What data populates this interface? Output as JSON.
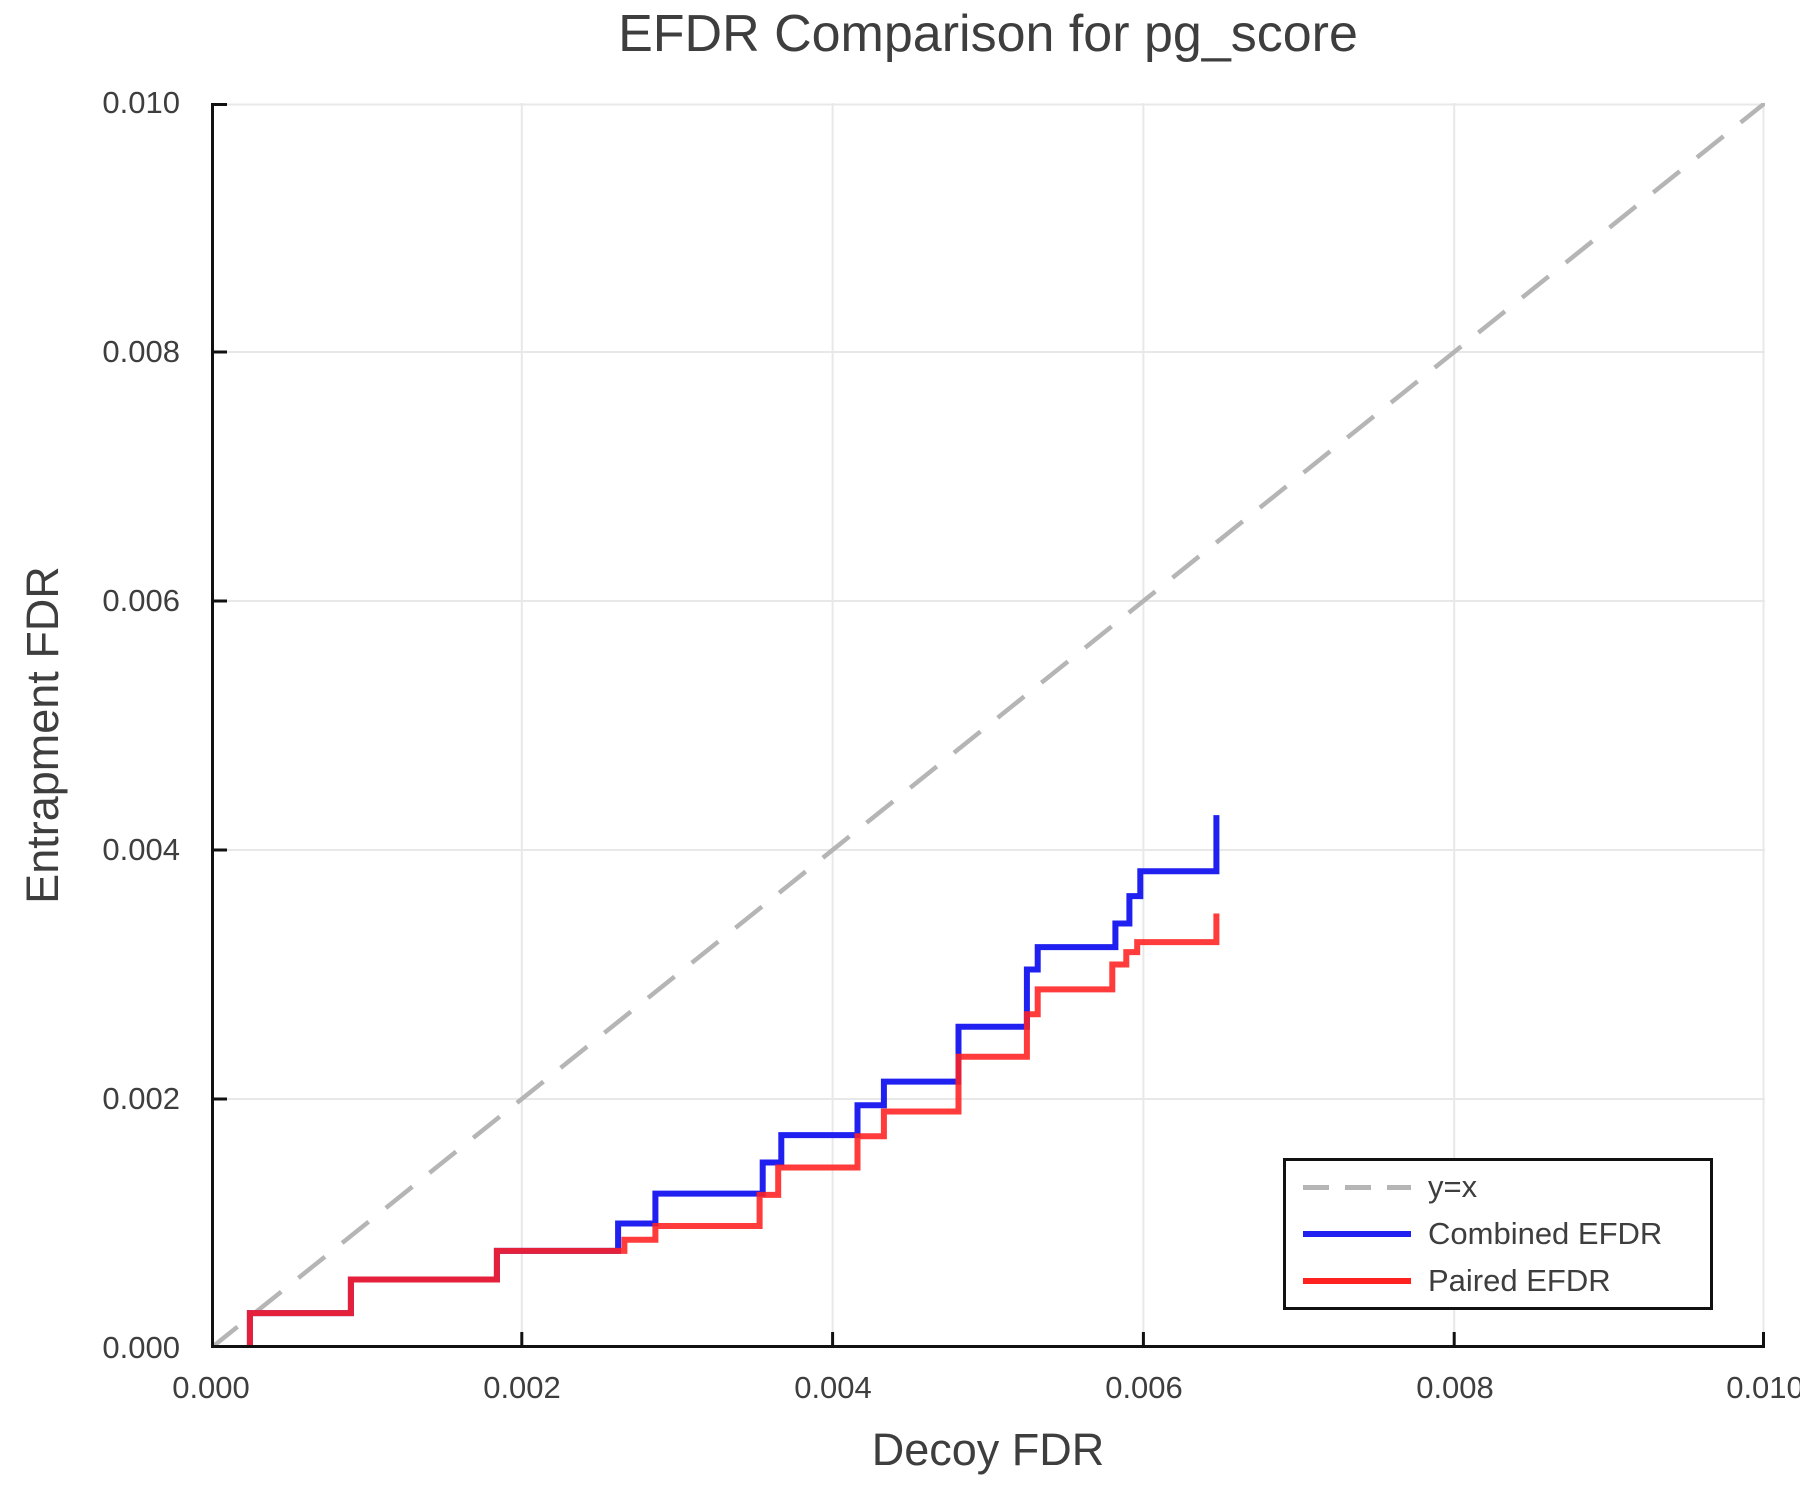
{
  "title": "EFDR Comparison for pg_score",
  "axes": {
    "xlabel": "Decoy FDR",
    "ylabel": "Entrapment FDR",
    "x_ticks": [
      "0.000",
      "0.002",
      "0.004",
      "0.006",
      "0.008",
      "0.010"
    ],
    "y_ticks": [
      "0.000",
      "0.002",
      "0.004",
      "0.006",
      "0.008",
      "0.010"
    ],
    "xlim": [
      0,
      0.01
    ],
    "ylim": [
      0,
      0.01
    ]
  },
  "legend": {
    "items": [
      {
        "label": "y=x",
        "color": "#b5b5b5",
        "style": "dashed"
      },
      {
        "label": "Combined EFDR",
        "color": "#2020f0",
        "style": "solid"
      },
      {
        "label": "Paired EFDR",
        "color": "#ff2020",
        "style": "solid"
      }
    ]
  },
  "colors": {
    "grid": "#e8e8e8",
    "spine": "#111111",
    "identity_line": "#b5b5b5",
    "combined": "#2020f0",
    "paired": "#ff2020",
    "text": "#3e3e3e"
  },
  "chart_data": {
    "type": "line",
    "title": "EFDR Comparison for pg_score",
    "xlabel": "Decoy FDR",
    "ylabel": "Entrapment FDR",
    "xlim": [
      0,
      0.01
    ],
    "ylim": [
      0,
      0.01
    ],
    "grid": true,
    "legend_position": "bottom-right",
    "series": [
      {
        "name": "y=x",
        "style": "line",
        "color": "#b5b5b5",
        "width": 4.5,
        "dash": "34 22",
        "points": [
          [
            0,
            0
          ],
          [
            0.01,
            0.01
          ]
        ]
      },
      {
        "name": "Combined EFDR",
        "style": "step",
        "color": "#2020f0",
        "width": 6,
        "points": [
          [
            0.0,
            0.0
          ],
          [
            0.00025,
            0.00028
          ],
          [
            0.0009,
            0.00055
          ],
          [
            0.00184,
            0.00078
          ],
          [
            0.00262,
            0.001
          ],
          [
            0.00286,
            0.00124
          ],
          [
            0.00355,
            0.00149
          ],
          [
            0.00367,
            0.00171
          ],
          [
            0.00416,
            0.00195
          ],
          [
            0.00433,
            0.00214
          ],
          [
            0.00481,
            0.00258
          ],
          [
            0.00525,
            0.00304
          ],
          [
            0.00532,
            0.00322
          ],
          [
            0.00582,
            0.00341
          ],
          [
            0.00591,
            0.00363
          ],
          [
            0.00598,
            0.00383
          ],
          [
            0.00647,
            0.00428
          ]
        ]
      },
      {
        "name": "Paired EFDR",
        "style": "step",
        "color": "#ff2020",
        "width": 6,
        "opacity": 0.88,
        "points": [
          [
            0.0,
            0.0
          ],
          [
            0.00025,
            0.00028
          ],
          [
            0.0009,
            0.00055
          ],
          [
            0.00184,
            0.00078
          ],
          [
            0.00266,
            0.00087
          ],
          [
            0.00286,
            0.00098
          ],
          [
            0.00353,
            0.00123
          ],
          [
            0.00365,
            0.00145
          ],
          [
            0.00416,
            0.0017
          ],
          [
            0.00433,
            0.0019
          ],
          [
            0.00481,
            0.00234
          ],
          [
            0.00525,
            0.00268
          ],
          [
            0.00532,
            0.00288
          ],
          [
            0.0058,
            0.00308
          ],
          [
            0.00589,
            0.00318
          ],
          [
            0.00596,
            0.00326
          ],
          [
            0.00647,
            0.00349
          ]
        ]
      }
    ]
  }
}
